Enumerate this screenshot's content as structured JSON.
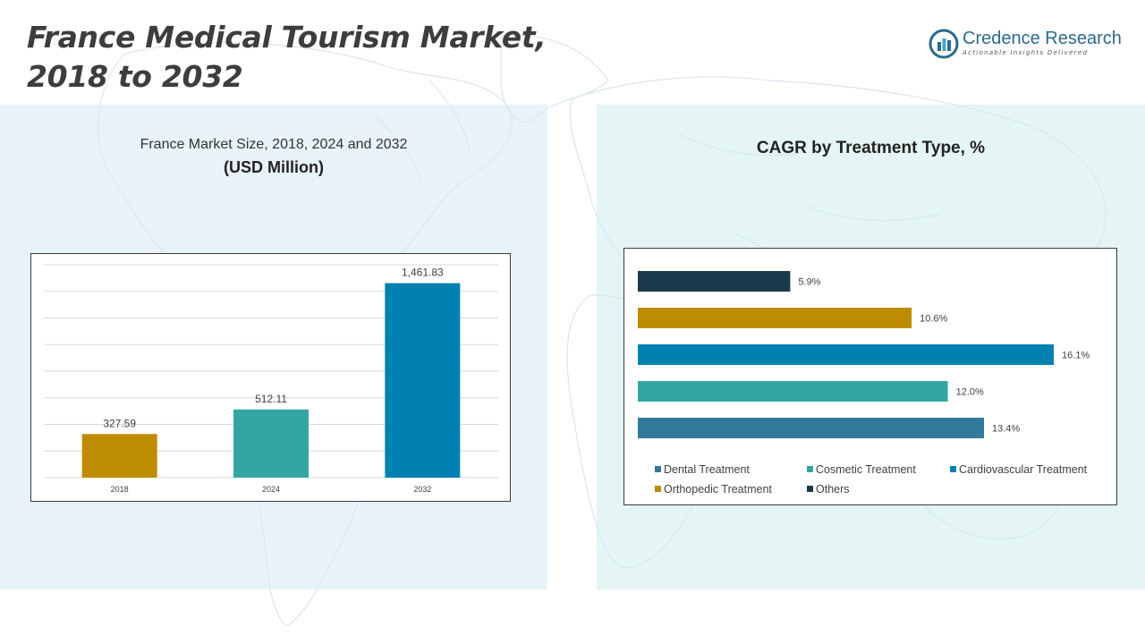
{
  "page": {
    "title_line1": "France Medical Tourism Market,",
    "title_line2": "2018 to 2032"
  },
  "brand": {
    "name": "Credence Research",
    "tagline": "Actionable Insights Delivered"
  },
  "colors": {
    "gold": "#BE8C00",
    "teal": "#33A6A4",
    "blue": "#0081B2",
    "steel": "#317A99",
    "navy": "#1A3A4B",
    "brand": "#2D6A8F"
  },
  "chart_data": [
    {
      "type": "bar",
      "title": "France Market Size, 2018, 2024 and 2032",
      "subtitle": "(USD Million)",
      "categories": [
        "2018",
        "2024",
        "2032"
      ],
      "values": [
        327.59,
        512.11,
        1461.83
      ],
      "value_labels": [
        "327.59",
        "512.11",
        "1,461.83"
      ],
      "colors": [
        "#BE8C00",
        "#33A6A4",
        "#0081B2"
      ],
      "xlabel": "",
      "ylabel": "",
      "ylim": [
        0,
        1600
      ],
      "grid": true
    },
    {
      "type": "bar",
      "orientation": "horizontal",
      "title": "CAGR by Treatment Type, %",
      "categories": [
        "Others",
        "Orthopedic Treatment",
        "Cardiovascular Treatment",
        "Cosmetic Treatment",
        "Dental Treatment"
      ],
      "values": [
        5.9,
        10.6,
        16.1,
        12.0,
        13.4
      ],
      "value_labels": [
        "5.9%",
        "10.6%",
        "16.1%",
        "12.0%",
        "13.4%"
      ],
      "colors": [
        "#1A3A4B",
        "#BE8C00",
        "#0081B2",
        "#33A6A4",
        "#317A99"
      ],
      "xlim": [
        0,
        16.1
      ],
      "grid": false,
      "legend": {
        "position": "bottom",
        "items": [
          {
            "label": "Dental Treatment",
            "color": "#317A99"
          },
          {
            "label": "Cosmetic Treatment",
            "color": "#33A6A4"
          },
          {
            "label": "Cardiovascular Treatment",
            "color": "#0081B2"
          },
          {
            "label": "Orthopedic Treatment",
            "color": "#BE8C00"
          },
          {
            "label": "Others",
            "color": "#1A3A4B"
          }
        ]
      }
    }
  ]
}
